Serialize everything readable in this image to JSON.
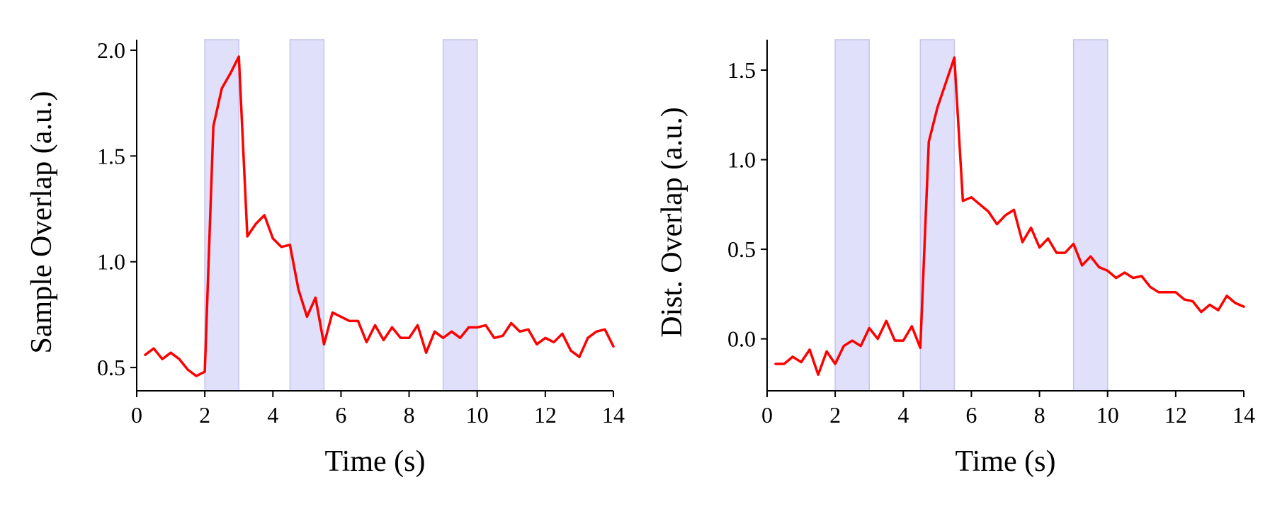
{
  "chart_data": [
    {
      "type": "line",
      "xlabel": "Time (s)",
      "ylabel": "Sample Overlap (a.u.)",
      "xlim": [
        0,
        14
      ],
      "ylim": [
        0.39,
        2.05
      ],
      "x_ticks": [
        0,
        2,
        4,
        6,
        8,
        10,
        12,
        14
      ],
      "x_tick_labels": [
        "0",
        "2",
        "4",
        "6",
        "8",
        "10",
        "12",
        "14"
      ],
      "y_ticks": [
        0.5,
        1.0,
        1.5,
        2.0
      ],
      "y_tick_labels": [
        "0.5",
        "1.0",
        "1.5",
        "2.0"
      ],
      "shaded_intervals": [
        [
          2,
          3
        ],
        [
          4.5,
          5.5
        ],
        [
          9,
          10
        ]
      ],
      "grid": false,
      "line_color": "#ff0000",
      "shade_color": "#e0e0fa",
      "shade_edge_color": "#c4c4ef",
      "series": [
        {
          "x": [
            0.25,
            0.5,
            0.75,
            1.0,
            1.25,
            1.5,
            1.75,
            2.0,
            2.25,
            2.5,
            2.75,
            3.0,
            3.25,
            3.5,
            3.75,
            4.0,
            4.25,
            4.5,
            4.75,
            5.0,
            5.25,
            5.5,
            5.75,
            6.0,
            6.25,
            6.5,
            6.75,
            7.0,
            7.25,
            7.5,
            7.75,
            8.0,
            8.25,
            8.5,
            8.75,
            9.0,
            9.25,
            9.5,
            9.75,
            10.0,
            10.25,
            10.5,
            10.75,
            11.0,
            11.25,
            11.5,
            11.75,
            12.0,
            12.25,
            12.5,
            12.75,
            13.0,
            13.25,
            13.5,
            13.75,
            14.0
          ],
          "y": [
            0.56,
            0.59,
            0.54,
            0.57,
            0.54,
            0.49,
            0.46,
            0.48,
            1.64,
            1.82,
            1.89,
            1.97,
            1.12,
            1.18,
            1.22,
            1.11,
            1.07,
            1.08,
            0.87,
            0.74,
            0.83,
            0.61,
            0.76,
            0.74,
            0.72,
            0.72,
            0.62,
            0.7,
            0.63,
            0.69,
            0.64,
            0.64,
            0.7,
            0.57,
            0.67,
            0.64,
            0.67,
            0.64,
            0.69,
            0.69,
            0.7,
            0.64,
            0.65,
            0.71,
            0.67,
            0.68,
            0.61,
            0.64,
            0.62,
            0.66,
            0.58,
            0.55,
            0.64,
            0.67,
            0.68,
            0.6
          ]
        }
      ]
    },
    {
      "type": "line",
      "xlabel": "Time (s)",
      "ylabel": "Dist. Overlap (a.u.)",
      "xlim": [
        0,
        14
      ],
      "ylim": [
        -0.29,
        1.67
      ],
      "x_ticks": [
        0,
        2,
        4,
        6,
        8,
        10,
        12,
        14
      ],
      "x_tick_labels": [
        "0",
        "2",
        "4",
        "6",
        "8",
        "10",
        "12",
        "14"
      ],
      "y_ticks": [
        0.0,
        0.5,
        1.0,
        1.5
      ],
      "y_tick_labels": [
        "0.0",
        "0.5",
        "1.0",
        "1.5"
      ],
      "shaded_intervals": [
        [
          2,
          3
        ],
        [
          4.5,
          5.5
        ],
        [
          9,
          10
        ]
      ],
      "grid": false,
      "line_color": "#ff0000",
      "shade_color": "#e0e0fa",
      "shade_edge_color": "#c4c4ef",
      "series": [
        {
          "x": [
            0.25,
            0.5,
            0.75,
            1.0,
            1.25,
            1.5,
            1.75,
            2.0,
            2.25,
            2.5,
            2.75,
            3.0,
            3.25,
            3.5,
            3.75,
            4.0,
            4.25,
            4.5,
            4.75,
            5.0,
            5.25,
            5.5,
            5.75,
            6.0,
            6.25,
            6.5,
            6.75,
            7.0,
            7.25,
            7.5,
            7.75,
            8.0,
            8.25,
            8.5,
            8.75,
            9.0,
            9.25,
            9.5,
            9.75,
            10.0,
            10.25,
            10.5,
            10.75,
            11.0,
            11.25,
            11.5,
            11.75,
            12.0,
            12.25,
            12.5,
            12.75,
            13.0,
            13.25,
            13.5,
            13.75,
            14.0
          ],
          "y": [
            -0.14,
            -0.14,
            -0.1,
            -0.13,
            -0.06,
            -0.2,
            -0.07,
            -0.14,
            -0.04,
            -0.01,
            -0.04,
            0.06,
            0.0,
            0.1,
            -0.01,
            -0.01,
            0.07,
            -0.05,
            1.1,
            1.29,
            1.43,
            1.57,
            0.77,
            0.79,
            0.75,
            0.71,
            0.64,
            0.69,
            0.72,
            0.54,
            0.62,
            0.51,
            0.56,
            0.48,
            0.48,
            0.53,
            0.41,
            0.46,
            0.4,
            0.38,
            0.34,
            0.37,
            0.34,
            0.35,
            0.29,
            0.26,
            0.26,
            0.26,
            0.22,
            0.21,
            0.15,
            0.19,
            0.16,
            0.24,
            0.2,
            0.18
          ]
        }
      ]
    }
  ]
}
